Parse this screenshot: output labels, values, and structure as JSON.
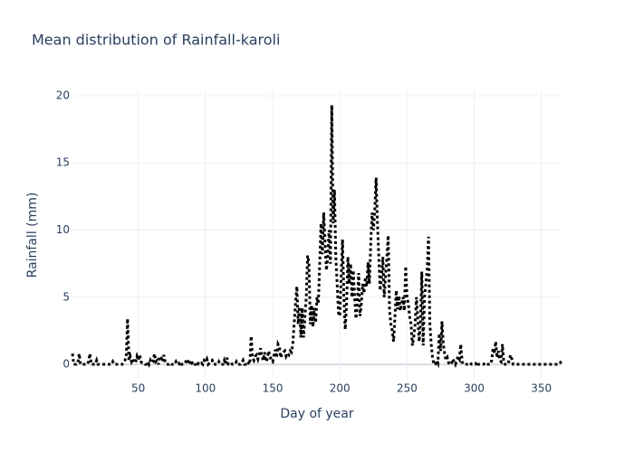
{
  "chart_data": {
    "type": "line",
    "title": "Mean distribution of Rainfall-karoli",
    "xlabel": "Day of year",
    "ylabel": "Rainfall (mm)",
    "x": [
      1,
      2,
      3,
      4,
      5,
      6,
      7,
      8,
      9,
      10,
      11,
      12,
      13,
      14,
      15,
      16,
      17,
      18,
      19,
      20,
      21,
      22,
      23,
      24,
      25,
      26,
      27,
      28,
      29,
      30,
      31,
      32,
      33,
      34,
      35,
      36,
      37,
      38,
      39,
      40,
      41,
      42,
      43,
      44,
      45,
      46,
      47,
      48,
      49,
      50,
      51,
      52,
      53,
      54,
      55,
      56,
      57,
      58,
      59,
      60,
      61,
      62,
      63,
      64,
      65,
      66,
      67,
      68,
      69,
      70,
      71,
      72,
      73,
      74,
      75,
      76,
      77,
      78,
      79,
      80,
      81,
      82,
      83,
      84,
      85,
      86,
      87,
      88,
      89,
      90,
      91,
      92,
      93,
      94,
      95,
      96,
      97,
      98,
      99,
      100,
      101,
      102,
      103,
      104,
      105,
      106,
      107,
      108,
      109,
      110,
      111,
      112,
      113,
      114,
      115,
      116,
      117,
      118,
      119,
      120,
      121,
      122,
      123,
      124,
      125,
      126,
      127,
      128,
      129,
      130,
      131,
      132,
      133,
      134,
      135,
      136,
      137,
      138,
      139,
      140,
      141,
      142,
      143,
      144,
      145,
      146,
      147,
      148,
      149,
      150,
      151,
      152,
      153,
      154,
      155,
      156,
      157,
      158,
      159,
      160,
      161,
      162,
      163,
      164,
      165,
      166,
      167,
      168,
      169,
      170,
      171,
      172,
      173,
      174,
      175,
      176,
      177,
      178,
      179,
      180,
      181,
      182,
      183,
      184,
      185,
      186,
      187,
      188,
      189,
      190,
      191,
      192,
      193,
      194,
      195,
      196,
      197,
      198,
      199,
      200,
      201,
      202,
      203,
      204,
      205,
      206,
      207,
      208,
      209,
      210,
      211,
      212,
      213,
      214,
      215,
      216,
      217,
      218,
      219,
      220,
      221,
      222,
      223,
      224,
      225,
      226,
      227,
      228,
      229,
      230,
      231,
      232,
      233,
      234,
      235,
      236,
      237,
      238,
      239,
      240,
      241,
      242,
      243,
      244,
      245,
      246,
      247,
      248,
      249,
      250,
      251,
      252,
      253,
      254,
      255,
      256,
      257,
      258,
      259,
      260,
      261,
      262,
      263,
      264,
      265,
      266,
      267,
      268,
      269,
      270,
      271,
      272,
      273,
      274,
      275,
      276,
      277,
      278,
      279,
      280,
      281,
      282,
      283,
      284,
      285,
      286,
      287,
      288,
      289,
      290,
      291,
      292,
      293,
      294,
      295,
      296,
      297,
      298,
      299,
      300,
      301,
      302,
      303,
      304,
      305,
      306,
      307,
      308,
      309,
      310,
      311,
      312,
      313,
      314,
      315,
      316,
      317,
      318,
      319,
      320,
      321,
      322,
      323,
      324,
      325,
      326,
      327,
      328,
      329,
      330,
      331,
      332,
      333,
      334,
      335,
      336,
      337,
      338,
      339,
      340,
      341,
      342,
      343,
      344,
      345,
      346,
      347,
      348,
      349,
      350,
      351,
      352,
      353,
      354,
      355,
      356,
      357,
      358,
      359,
      360,
      361,
      362,
      363,
      364,
      365
    ],
    "values": [
      0.8,
      0,
      0,
      0,
      0.1,
      0.8,
      0,
      0,
      0,
      0,
      0,
      0,
      0.2,
      0.8,
      0,
      0,
      0,
      0,
      0.3,
      0,
      0,
      0,
      0,
      0,
      0,
      0,
      0,
      0,
      0,
      0,
      0.2,
      0,
      0,
      0,
      0,
      0,
      0,
      0,
      0.2,
      0.3,
      0.5,
      3.4,
      0.3,
      0.6,
      0.2,
      0.4,
      0.1,
      0.2,
      0.6,
      0.3,
      0.7,
      0.2,
      0.1,
      0.1,
      0,
      0,
      0.2,
      0,
      0.3,
      0.1,
      0.2,
      0.8,
      0.2,
      0.3,
      0,
      0.6,
      0.5,
      0.2,
      0.7,
      0.2,
      0,
      0,
      0,
      0.1,
      0,
      0,
      0,
      0.2,
      0,
      0,
      0.2,
      0,
      0,
      0,
      0.1,
      0.4,
      0.2,
      0,
      0.3,
      0.1,
      0.2,
      0,
      0,
      0.2,
      0,
      0,
      0.1,
      0,
      0.3,
      0.2,
      0.4,
      0,
      0.1,
      0.2,
      0.3,
      0,
      0,
      0,
      0,
      0.2,
      0,
      0,
      0,
      0.3,
      0,
      0.5,
      0,
      0,
      0.1,
      0,
      0,
      0,
      0.2,
      0,
      0,
      0,
      0.1,
      0.3,
      0,
      0,
      0.2,
      0.1,
      0,
      2.1,
      0.5,
      0.3,
      0.6,
      0.7,
      0.4,
      0.8,
      1.2,
      0.6,
      0.3,
      0.9,
      0.2,
      0.4,
      1.0,
      0.6,
      0.3,
      0.2,
      0.7,
      1.1,
      0.5,
      1.5,
      1.3,
      0.5,
      0.8,
      0.9,
      1.0,
      0.6,
      0.8,
      0.7,
      1.0,
      0.9,
      1.5,
      3.0,
      4.5,
      5.8,
      3.0,
      4.3,
      2.0,
      4.2,
      2.0,
      3.5,
      5.0,
      8.1,
      7.6,
      3.0,
      4.4,
      2.8,
      4.2,
      3.1,
      5.0,
      4.5,
      7.5,
      10.5,
      8.2,
      11.3,
      9.0,
      7.0,
      8.0,
      10.0,
      7.5,
      19.3,
      10.5,
      13.0,
      8.0,
      6.0,
      3.8,
      3.6,
      6.5,
      9.3,
      5.0,
      2.6,
      4.5,
      8.0,
      6.0,
      7.5,
      5.0,
      7.0,
      5.0,
      3.4,
      4.5,
      6.8,
      3.6,
      4.5,
      6.0,
      5.3,
      6.5,
      5.8,
      7.6,
      6.0,
      9.0,
      11.3,
      10.0,
      11.5,
      13.9,
      10.5,
      8.0,
      5.5,
      6.5,
      8.0,
      5.0,
      6.5,
      8.0,
      9.6,
      4.0,
      3.0,
      2.5,
      1.7,
      3.5,
      5.5,
      4.1,
      5.1,
      4.0,
      4.5,
      5.0,
      4.0,
      7.3,
      5.0,
      4.5,
      3.5,
      3.0,
      1.4,
      2.0,
      3.0,
      5.0,
      3.5,
      1.7,
      3.0,
      6.9,
      1.4,
      5.0,
      6.0,
      7.0,
      9.5,
      3.0,
      1.5,
      0.5,
      0,
      0,
      0.3,
      0.1,
      2.3,
      1.0,
      3.2,
      1.5,
      0.8,
      0.3,
      0.5,
      0.1,
      0,
      0,
      0.4,
      0.2,
      0,
      0.3,
      0.6,
      0.4,
      1.5,
      0.2,
      0,
      0,
      0,
      0,
      0,
      0.1,
      0,
      0,
      0,
      0,
      0.2,
      0,
      0,
      0,
      0,
      0,
      0.1,
      0,
      0,
      0,
      0,
      0.3,
      1.2,
      0.8,
      1.7,
      0.5,
      1.0,
      0.3,
      0.2,
      1.5,
      0.2,
      0,
      0,
      0,
      0.3,
      0.7,
      0.4,
      0,
      0,
      0,
      0,
      0,
      0,
      0,
      0,
      0,
      0,
      0,
      0,
      0,
      0,
      0,
      0,
      0,
      0,
      0,
      0,
      0,
      0,
      0,
      0,
      0,
      0,
      0,
      0,
      0,
      0,
      0,
      0,
      0,
      0,
      0,
      0.1,
      0.3
    ],
    "color": "#000000",
    "dash": "dot",
    "xlim": [
      1,
      365
    ],
    "xticks": [
      50,
      100,
      150,
      200,
      250,
      300,
      350
    ],
    "ylim": [
      -1.14,
      20.4
    ],
    "yticks": [
      0,
      5,
      10,
      15,
      20
    ],
    "grid": true
  }
}
